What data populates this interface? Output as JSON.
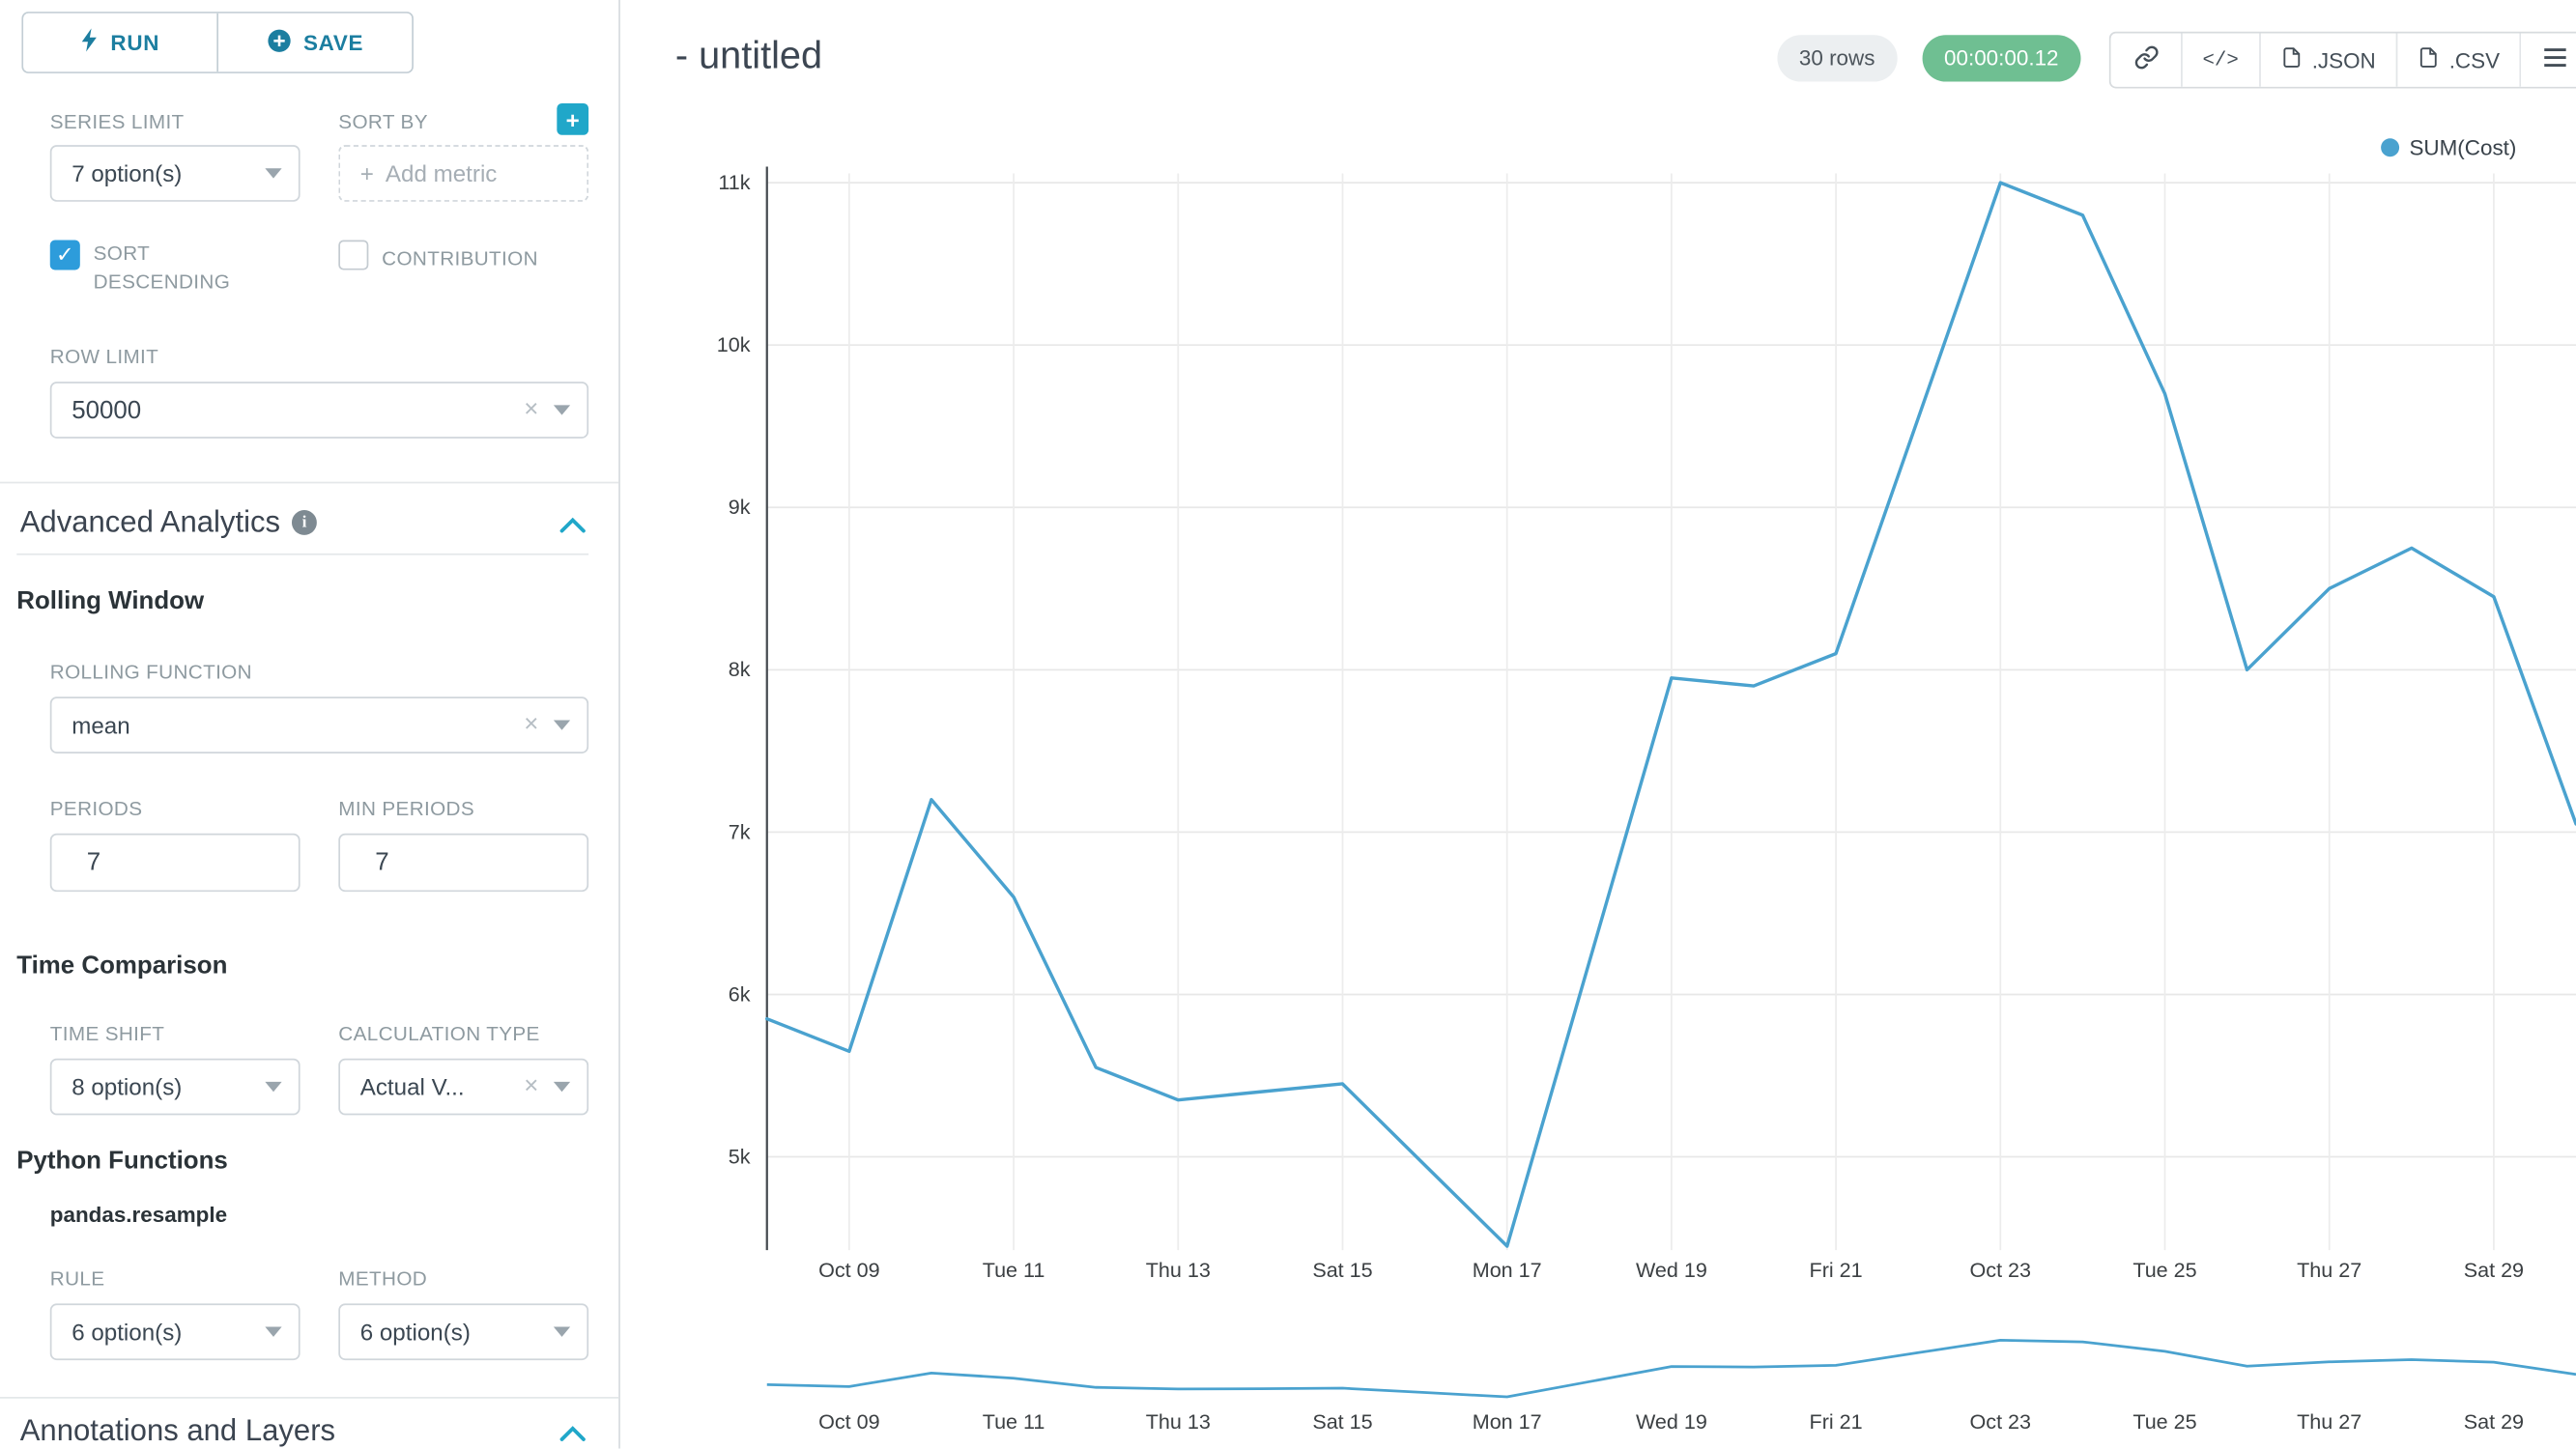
{
  "colors": {
    "accent": "#20A7C9",
    "line": "#4AA2CF",
    "timer_green": "#6FBF92",
    "checkbox_blue": "#2D9CDB"
  },
  "sidebar": {
    "run_label": "RUN",
    "save_label": "SAVE",
    "series_limit": {
      "label": "SERIES LIMIT",
      "value": "7 option(s)"
    },
    "sort_by": {
      "label": "SORT BY",
      "placeholder": "Add metric",
      "add_button": "+",
      "placeholder_plus": "+"
    },
    "sort_descending": {
      "label": "SORT DESCENDING",
      "checked": true
    },
    "contribution": {
      "label": "CONTRIBUTION",
      "checked": false
    },
    "row_limit": {
      "label": "ROW LIMIT",
      "value": "50000"
    },
    "advanced": {
      "title": "Advanced Analytics"
    },
    "rolling": {
      "title": "Rolling Window",
      "function_label": "ROLLING FUNCTION",
      "function_value": "mean",
      "periods_label": "PERIODS",
      "periods_value": "7",
      "min_periods_label": "MIN PERIODS",
      "min_periods_value": "7"
    },
    "time_comparison": {
      "title": "Time Comparison",
      "shift_label": "TIME SHIFT",
      "shift_value": "8 option(s)",
      "calc_label": "CALCULATION TYPE",
      "calc_value": "Actual V..."
    },
    "python": {
      "title": "Python Functions",
      "subtitle": "pandas.resample",
      "rule_label": "RULE",
      "rule_value": "6 option(s)",
      "method_label": "METHOD",
      "method_value": "6 option(s)"
    },
    "annotations_title": "Annotations and Layers"
  },
  "header": {
    "title": "- untitled",
    "rows_badge": "30 rows",
    "timer_badge": "00:00:00.12",
    "code_glyph": "</>",
    "json_label": ".JSON",
    "csv_label": ".CSV"
  },
  "chart_data": {
    "type": "line",
    "title": "",
    "legend_position": "top-right",
    "grid": true,
    "series": [
      {
        "name": "SUM(Cost)",
        "values": [
          5850,
          5650,
          7200,
          6600,
          5550,
          5350,
          5400,
          5450,
          4950,
          4450,
          6200,
          7950,
          7900,
          8100,
          9550,
          11000,
          10800,
          9700,
          8000,
          8500,
          8750,
          8450,
          7050
        ]
      }
    ],
    "x": [
      "Oct 08",
      "Oct 09",
      "Oct 10",
      "Oct 11",
      "Oct 12",
      "Oct 13",
      "Oct 14",
      "Oct 15",
      "Oct 16",
      "Oct 17",
      "Oct 18",
      "Oct 19",
      "Oct 20",
      "Oct 21",
      "Oct 22",
      "Oct 23",
      "Oct 24",
      "Oct 25",
      "Oct 26",
      "Oct 27",
      "Oct 28",
      "Oct 29",
      "Oct 30"
    ],
    "x_ticks": [
      "Oct 09",
      "Tue 11",
      "Thu 13",
      "Sat 15",
      "Mon 17",
      "Wed 19",
      "Fri 21",
      "Oct 23",
      "Tue 25",
      "Thu 27",
      "Sat 29"
    ],
    "y_ticks": [
      "11k",
      "10k",
      "9k",
      "8k",
      "7k",
      "6k",
      "5k"
    ],
    "ylim": [
      4300,
      11200
    ],
    "xlabel": "",
    "ylabel": "",
    "has_mini_preview": true
  }
}
